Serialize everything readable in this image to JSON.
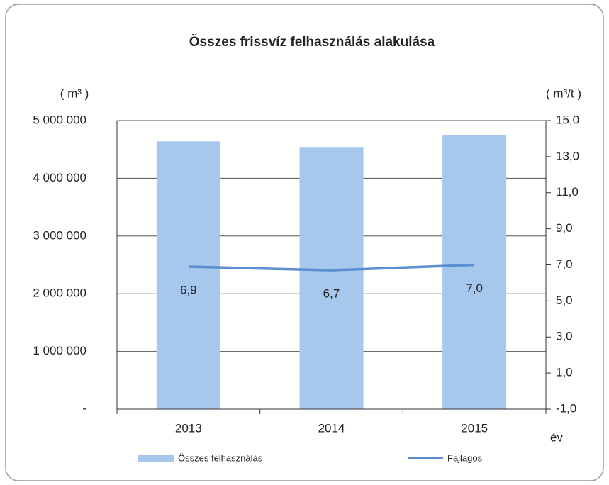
{
  "chart_data": {
    "type": "bar-line",
    "title": "Összes frissvíz felhasználás alakulása",
    "y_label": "( m³ )",
    "y2_label": "( m³/t )",
    "x_label": "év",
    "categories": [
      "2013",
      "2014",
      "2015"
    ],
    "series": [
      {
        "name": "Összes felhasználás",
        "type": "bar",
        "color": "#a6c8ec",
        "values": [
          4640000,
          4530000,
          4750000
        ]
      },
      {
        "name": "Fajlagos",
        "type": "line",
        "axis": "y2",
        "color": "#5a8ed0",
        "values": [
          6.9,
          6.7,
          7.0
        ],
        "value_labels": [
          "6,9",
          "6,7",
          "7,0"
        ]
      }
    ],
    "ylim": [
      0,
      5000000
    ],
    "yticks": [
      {
        "value": 0,
        "label": "-"
      },
      {
        "value": 1000000,
        "label": "1 000 000"
      },
      {
        "value": 2000000,
        "label": "2 000 000"
      },
      {
        "value": 3000000,
        "label": "3 000 000"
      },
      {
        "value": 4000000,
        "label": "4 000 000"
      },
      {
        "value": 5000000,
        "label": "5 000 000"
      }
    ],
    "y2lim": [
      -1,
      15
    ],
    "y2ticks": [
      {
        "value": -1,
        "label": "-1,0"
      },
      {
        "value": 1,
        "label": "1,0"
      },
      {
        "value": 3,
        "label": "3,0"
      },
      {
        "value": 5,
        "label": "5,0"
      },
      {
        "value": 7,
        "label": "7,0"
      },
      {
        "value": 9,
        "label": "9,0"
      },
      {
        "value": 11,
        "label": "11,0"
      },
      {
        "value": 13,
        "label": "13,0"
      },
      {
        "value": 15,
        "label": "15,0"
      }
    ],
    "grid": true
  }
}
